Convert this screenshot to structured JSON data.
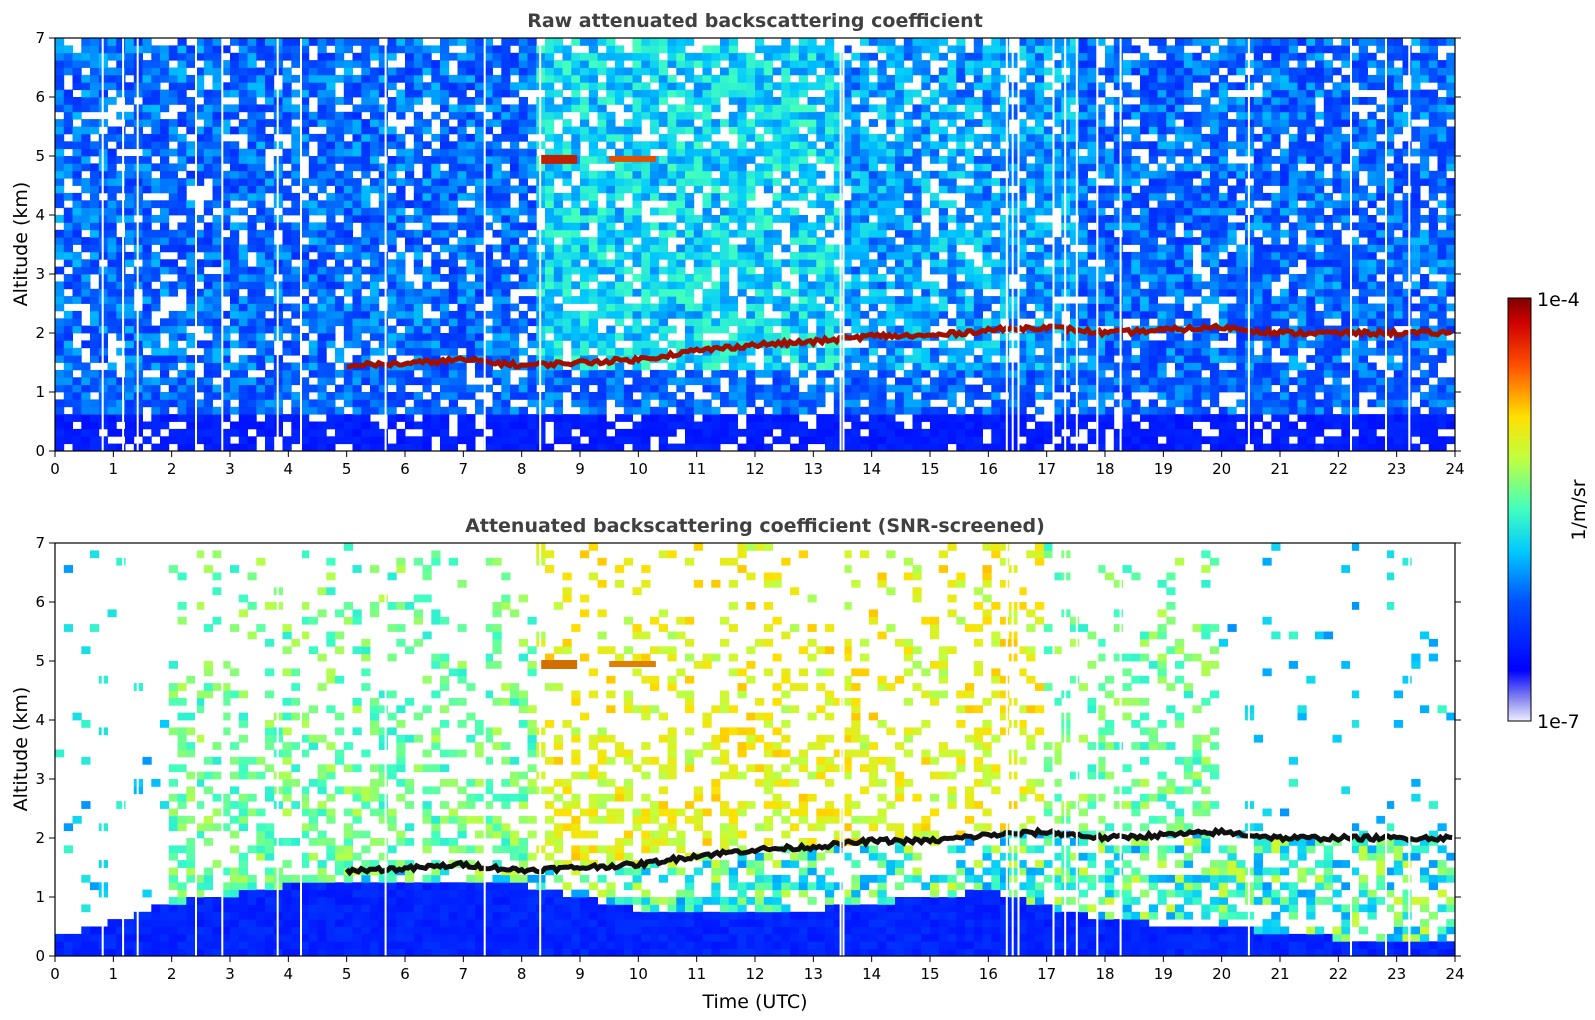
{
  "chart_data": [
    {
      "type": "heatmap",
      "title": "Raw attenuated backscattering coefficient",
      "xlabel": "",
      "ylabel": "Altitude (km)",
      "xlim": [
        0,
        24
      ],
      "ylim": [
        0,
        7
      ],
      "x_ticks": [
        "0",
        "1",
        "2",
        "3",
        "4",
        "5",
        "6",
        "7",
        "8",
        "9",
        "10",
        "11",
        "12",
        "13",
        "14",
        "15",
        "16",
        "17",
        "18",
        "19",
        "20",
        "21",
        "22",
        "23",
        "24"
      ],
      "y_ticks": [
        "0",
        "1",
        "2",
        "3",
        "4",
        "5",
        "6",
        "7"
      ],
      "scale": "log",
      "features": {
        "near_surface_layer_top_km": 0.6,
        "cloud_layer": {
          "time_utc": [
            5.0,
            6.0,
            7.0,
            8.0,
            9.0,
            10.0,
            11.0,
            12.0,
            13.0,
            14.0,
            15.0,
            16.0,
            17.0,
            18.0,
            19.0,
            20.0,
            21.0,
            22.0,
            23.0,
            24.0
          ],
          "altitude_km": [
            1.45,
            1.48,
            1.55,
            1.45,
            1.5,
            1.55,
            1.7,
            1.8,
            1.85,
            1.95,
            1.95,
            2.05,
            2.1,
            2.0,
            2.05,
            2.1,
            2.0,
            2.0,
            2.0,
            2.0
          ]
        },
        "elevated_layer": {
          "time_utc": [
            8.3,
            10.3
          ],
          "altitude_km": 4.95
        }
      }
    },
    {
      "type": "heatmap",
      "title": "Attenuated backscattering coefficient (SNR-screened)",
      "xlabel": "Time (UTC)",
      "ylabel": "Altitude (km)",
      "xlim": [
        0,
        24
      ],
      "ylim": [
        0,
        7
      ],
      "x_ticks": [
        "0",
        "1",
        "2",
        "3",
        "4",
        "5",
        "6",
        "7",
        "8",
        "9",
        "10",
        "11",
        "12",
        "13",
        "14",
        "15",
        "16",
        "17",
        "18",
        "19",
        "20",
        "21",
        "22",
        "23",
        "24"
      ],
      "y_ticks": [
        "0",
        "1",
        "2",
        "3",
        "4",
        "5",
        "6",
        "7"
      ],
      "scale": "log",
      "features": {
        "boundary_layer_top_km": {
          "time_utc": [
            0,
            2,
            4,
            6,
            8,
            10,
            12,
            14,
            16,
            18,
            20,
            22,
            24
          ],
          "altitude_km": [
            0.3,
            0.9,
            1.2,
            1.3,
            1.2,
            0.8,
            0.7,
            0.9,
            1.1,
            0.6,
            0.5,
            0.3,
            0.3
          ]
        }
      }
    }
  ],
  "colorbar": {
    "label": "1/m/sr",
    "max_label": "1e-4",
    "min_label": "1e-7",
    "min": 1e-07,
    "max": 0.0001,
    "colormap": "jet-with-white-low"
  }
}
